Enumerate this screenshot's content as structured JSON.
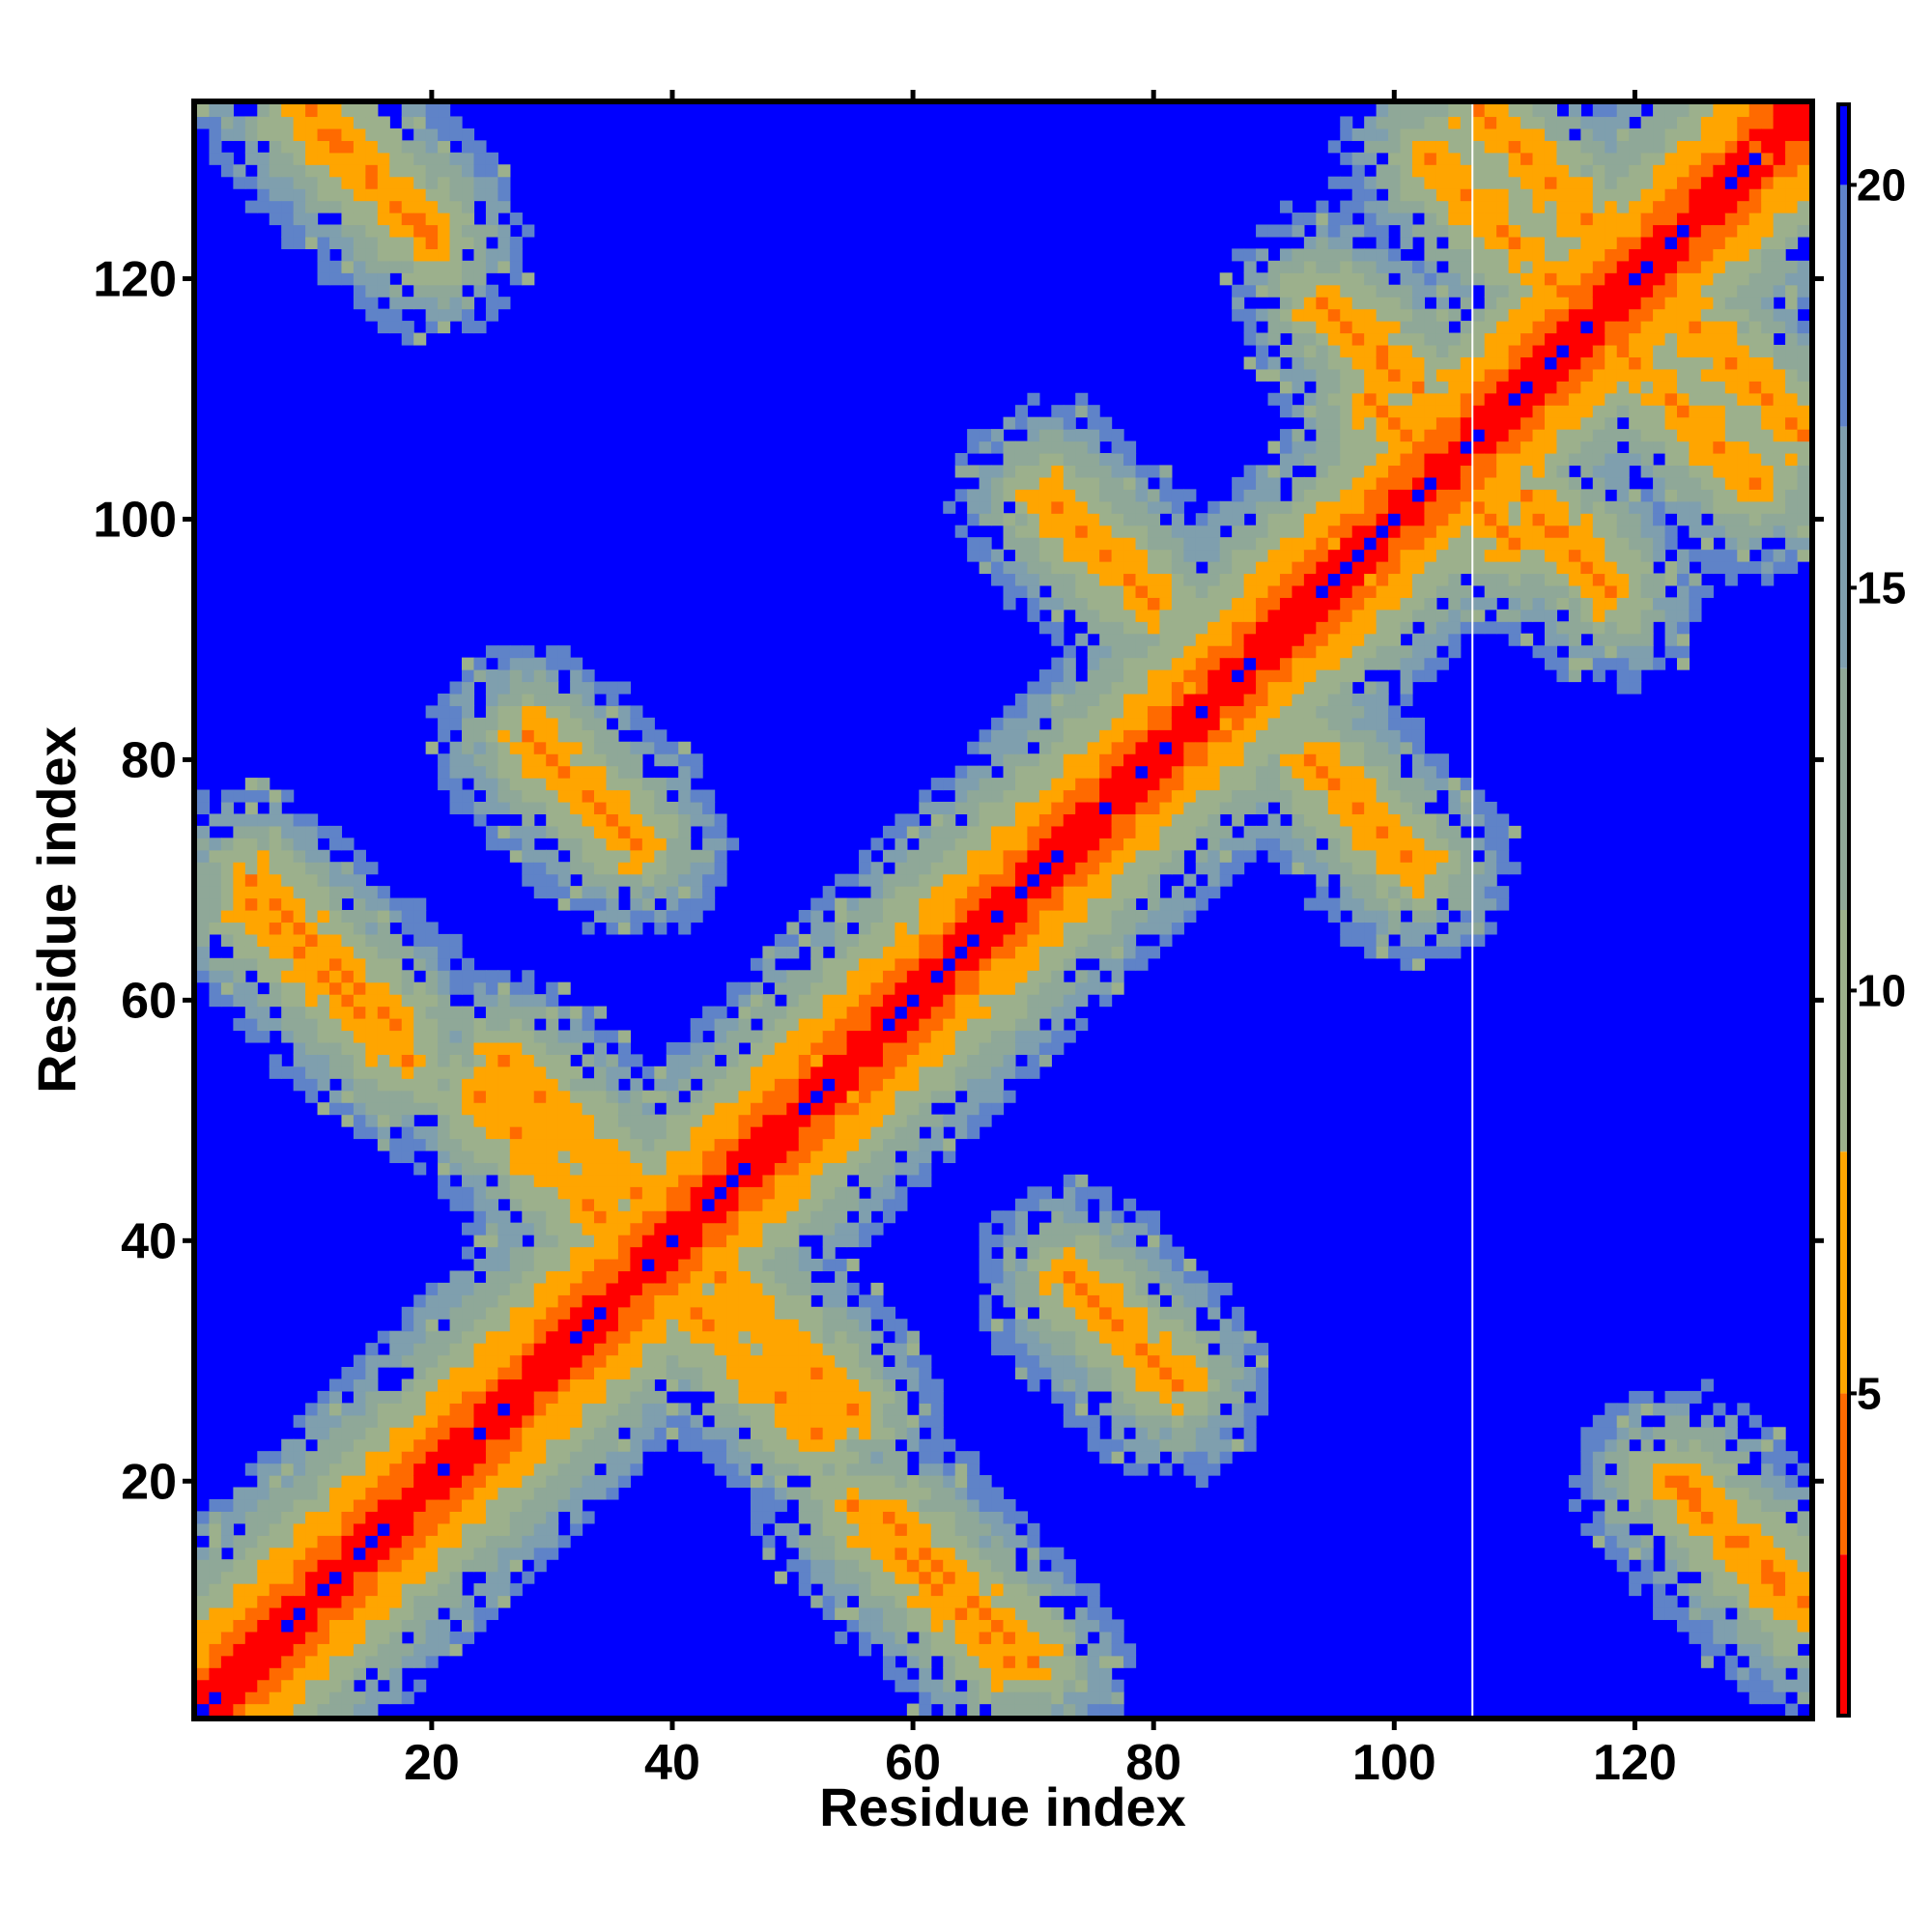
{
  "chart_data": {
    "type": "heatmap",
    "subtype": "protein residue distance map",
    "title": "",
    "xlabel": "Residue index",
    "ylabel": "Residue index",
    "n_residues": 134,
    "xlim": [
      1,
      134
    ],
    "ylim": [
      1,
      134
    ],
    "x_ticks": [
      20,
      40,
      60,
      80,
      100,
      120
    ],
    "y_ticks": [
      20,
      40,
      60,
      80,
      100,
      120
    ],
    "grid": false,
    "colorbar": {
      "position": "right",
      "range": [
        1,
        21
      ],
      "ticks": [
        5,
        10,
        15,
        20
      ],
      "colors": [
        {
          "from": 1,
          "to": 3,
          "color": "#ff0000"
        },
        {
          "from": 3,
          "to": 5,
          "color": "#ff6a00"
        },
        {
          "from": 5,
          "to": 8,
          "color": "#ffa500"
        },
        {
          "from": 8,
          "to": 11,
          "color": "#9cb08c"
        },
        {
          "from": 11,
          "to": 14,
          "color": "#8fa898"
        },
        {
          "from": 14,
          "to": 17,
          "color": "#7f9fae"
        },
        {
          "from": 17,
          "to": 20,
          "color": "#5f83c8"
        },
        {
          "from": 20,
          "to": 21,
          "color": "#0000ff"
        }
      ]
    },
    "value_description": "distance between residues; diagonal ~1, background >=20",
    "contact_bands": [
      {
        "i_start": 1,
        "j_start": 1,
        "length": 134,
        "direction": "parallel",
        "min_value": 1
      },
      {
        "i_start": 9,
        "j_start": 134,
        "length": 12,
        "direction": "antiparallel",
        "min_value": 5
      },
      {
        "i_start": 5,
        "j_start": 70,
        "length": 13,
        "direction": "antiparallel",
        "min_value": 5
      },
      {
        "i_start": 26,
        "j_start": 55,
        "length": 14,
        "direction": "antiparallel",
        "min_value": 5
      },
      {
        "i_start": 28,
        "j_start": 82,
        "length": 9,
        "direction": "antiparallel",
        "min_value": 5
      },
      {
        "i_start": 39,
        "j_start": 37,
        "length": 14,
        "direction": "antiparallel",
        "min_value": 5
      },
      {
        "i_start": 55,
        "j_start": 18,
        "length": 14,
        "direction": "antiparallel",
        "min_value": 5
      },
      {
        "i_start": 73,
        "j_start": 37,
        "length": 9,
        "direction": "antiparallel",
        "min_value": 5
      },
      {
        "i_start": 72,
        "j_start": 101,
        "length": 8,
        "direction": "antiparallel",
        "min_value": 5
      },
      {
        "i_start": 93,
        "j_start": 80,
        "length": 10,
        "direction": "antiparallel",
        "min_value": 5
      },
      {
        "i_start": 97,
        "j_start": 116,
        "length": 6,
        "direction": "antiparallel",
        "min_value": 5
      },
      {
        "i_start": 102,
        "j_start": 106,
        "length": 9,
        "direction": "antiparallel",
        "min_value": 5
      },
      {
        "i_start": 107,
        "j_start": 134,
        "length": 11,
        "direction": "antiparallel",
        "min_value": 5
      },
      {
        "i_start": 112,
        "j_start": 100,
        "length": 7,
        "direction": "antiparallel",
        "min_value": 5
      },
      {
        "i_start": 124,
        "j_start": 20,
        "length": 11,
        "direction": "antiparallel",
        "min_value": 5
      },
      {
        "i_start": 119,
        "j_start": 114,
        "length": 12,
        "direction": "antiparallel",
        "min_value": 5
      }
    ],
    "domain_blocks": [
      {
        "i_from": 100,
        "i_to": 134,
        "j_from": 93,
        "j_to": 134
      }
    ]
  }
}
